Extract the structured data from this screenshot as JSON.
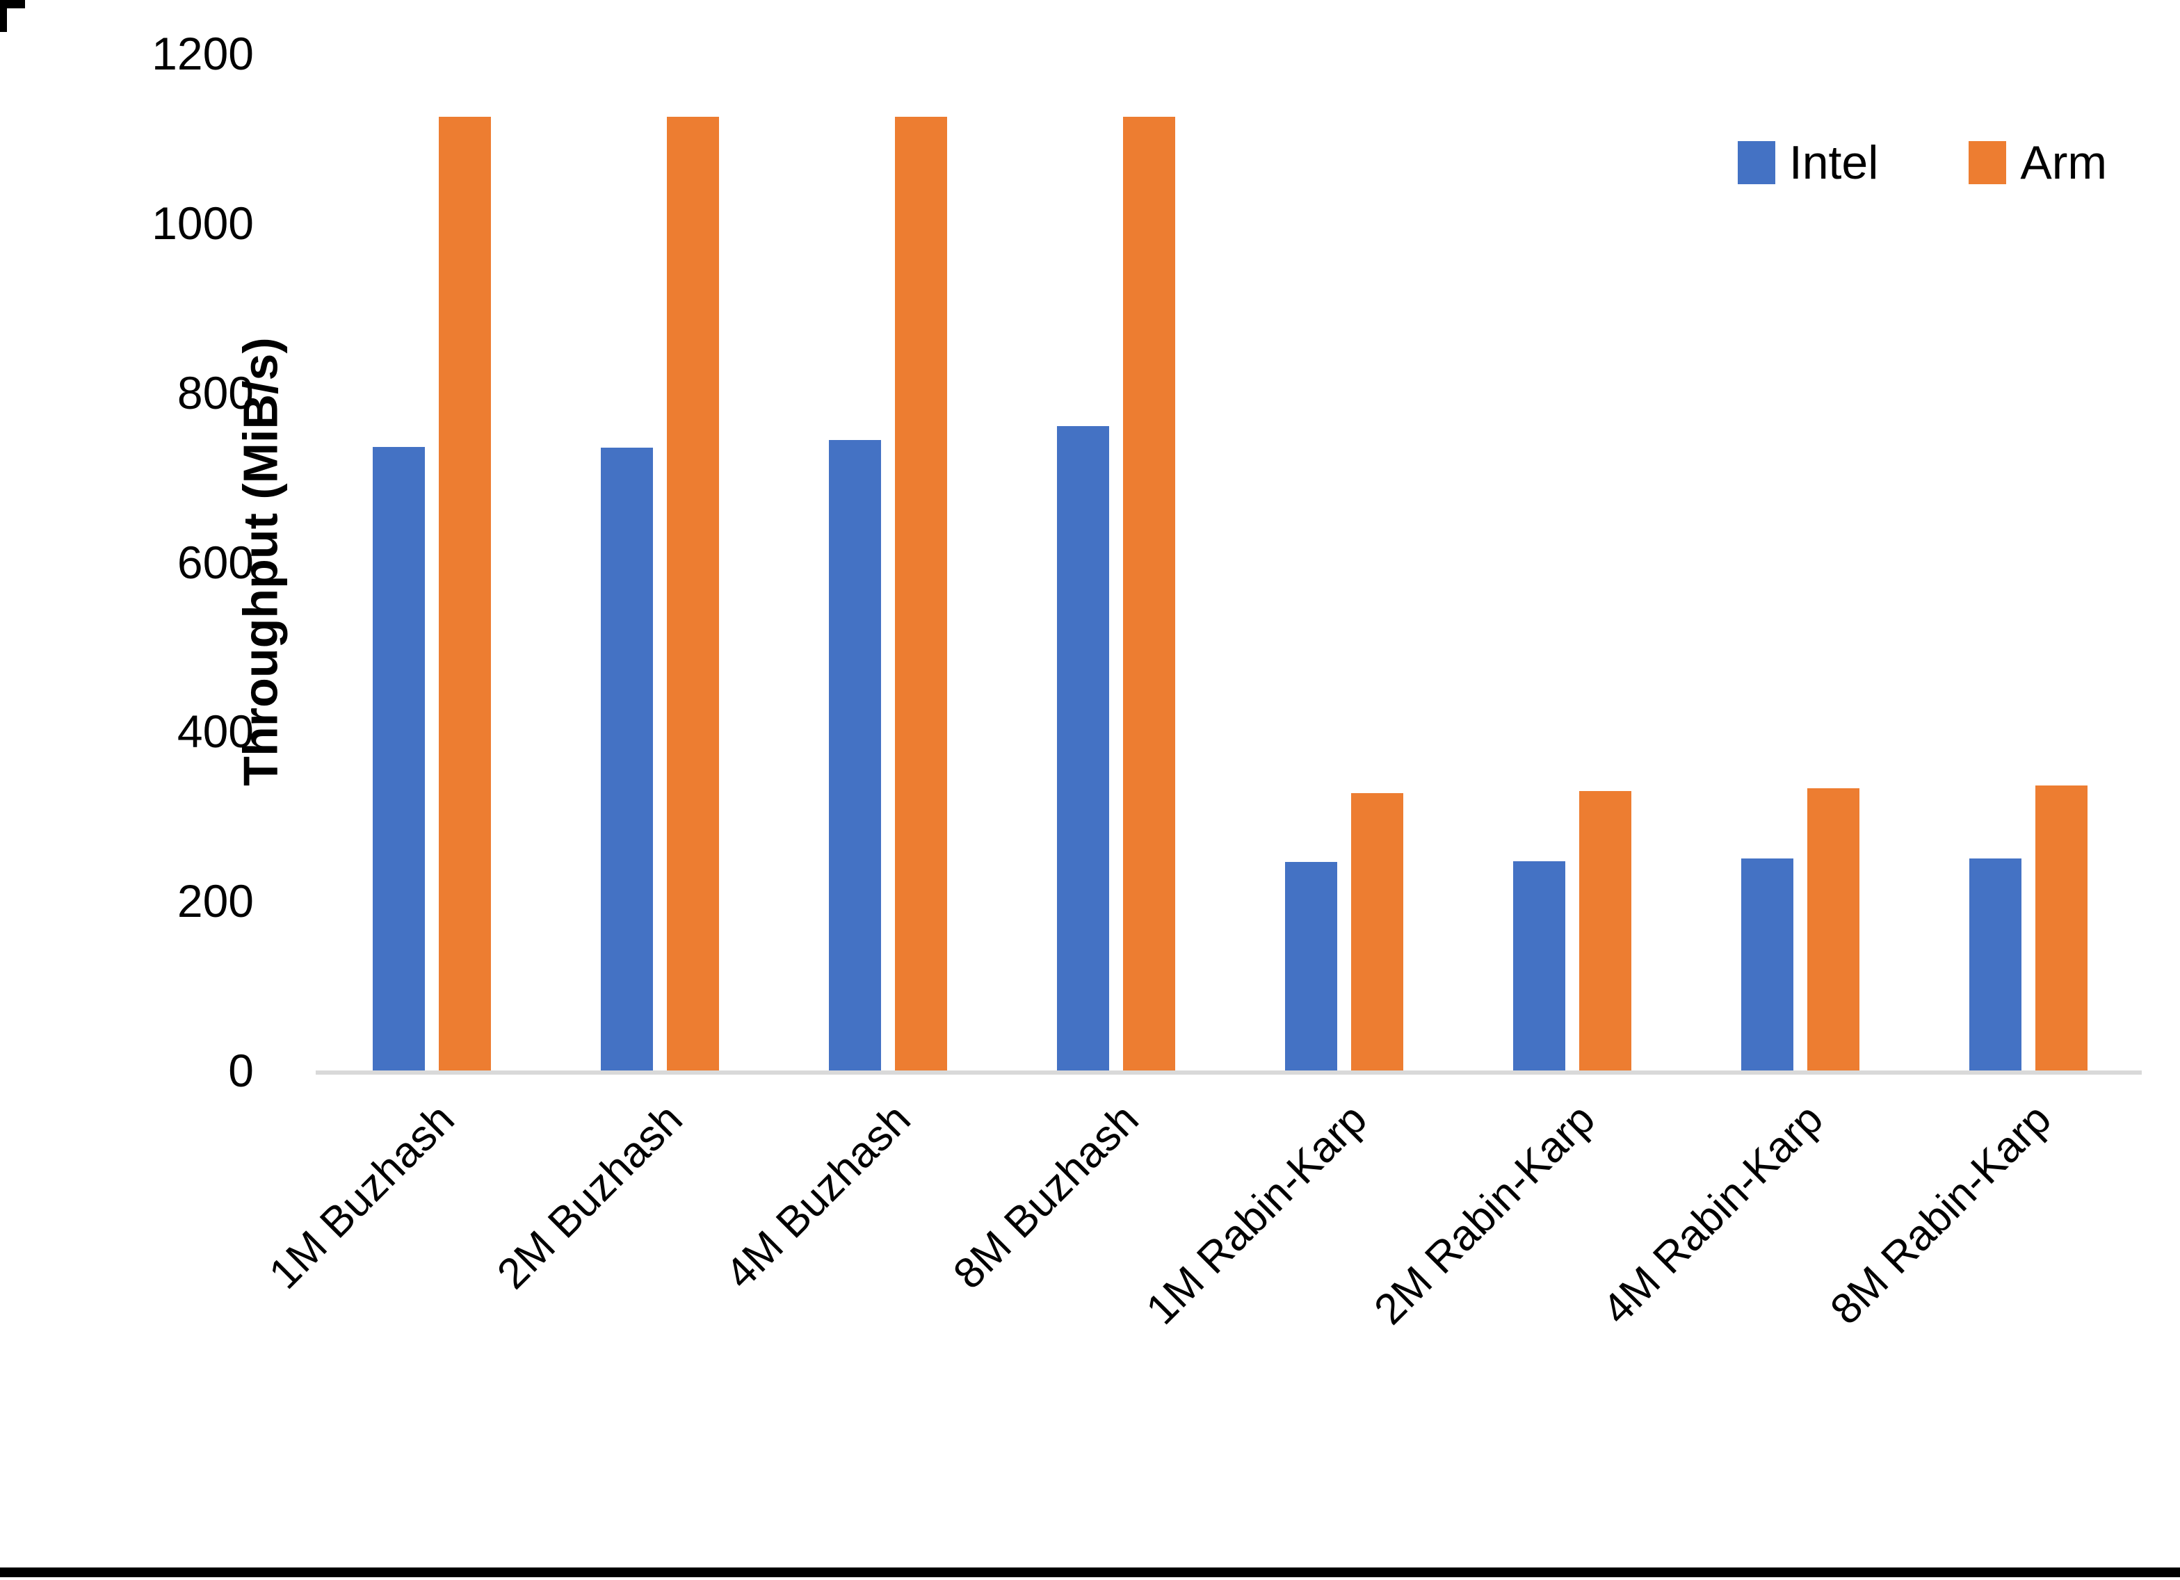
{
  "chart_data": {
    "type": "bar",
    "title": "",
    "categories": [
      "1M Buzhash",
      "2M Buzhash",
      "4M Buzhash",
      "8M Buzhash",
      "1M Rabin-Karp",
      "2M Rabin-Karp",
      "4M Rabin-Karp",
      "8M Rabin-Karp"
    ],
    "series": [
      {
        "name": "Intel",
        "color": "#4472C4",
        "values": [
          736,
          735,
          744,
          760,
          246,
          247,
          250,
          250
        ]
      },
      {
        "name": "Arm",
        "color": "#ED7D31",
        "values": [
          1125,
          1125,
          1125,
          1125,
          327,
          330,
          333,
          336
        ]
      }
    ],
    "xlabel": "",
    "ylabel": "Throughput (MiB/s)",
    "yticks": [
      0,
      200,
      400,
      600,
      800,
      1000,
      1200
    ],
    "ylim": [
      0,
      1200
    ],
    "grid": false,
    "legend_position": "top-right",
    "axis_line_color": "#d9d9d9",
    "text_color": "#000000",
    "background_color": "#ffffff"
  }
}
